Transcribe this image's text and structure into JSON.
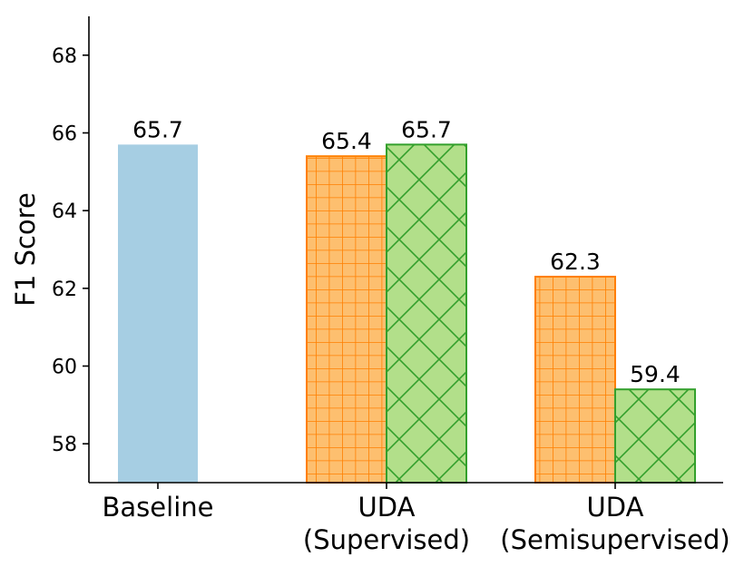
{
  "chart_data": {
    "type": "bar",
    "title": "",
    "xlabel": "",
    "ylabel": "F1 Score",
    "ylim": [
      57,
      69
    ],
    "yticks": [
      58,
      60,
      62,
      64,
      66,
      68
    ],
    "grid": false,
    "categories": [
      {
        "lines": [
          "Baseline"
        ]
      },
      {
        "lines": [
          "UDA",
          "(Supervised)"
        ]
      },
      {
        "lines": [
          "UDA",
          "(Semisupervised)"
        ]
      }
    ],
    "bars": [
      {
        "category_index": 0,
        "slot": "single",
        "value": 65.7,
        "label": "65.7",
        "color": "#a6cee3",
        "edge": "#a6cee3",
        "hatch": "none"
      },
      {
        "category_index": 1,
        "slot": "left",
        "value": 65.4,
        "label": "65.4",
        "color": "#fdbf6f",
        "edge": "#ff7f00",
        "hatch": "grid"
      },
      {
        "category_index": 1,
        "slot": "right",
        "value": 65.7,
        "label": "65.7",
        "color": "#b2df8a",
        "edge": "#33a02c",
        "hatch": "cross"
      },
      {
        "category_index": 2,
        "slot": "left",
        "value": 62.3,
        "label": "62.3",
        "color": "#fdbf6f",
        "edge": "#ff7f00",
        "hatch": "grid"
      },
      {
        "category_index": 2,
        "slot": "right",
        "value": 59.4,
        "label": "59.4",
        "color": "#b2df8a",
        "edge": "#33a02c",
        "hatch": "cross"
      }
    ]
  }
}
